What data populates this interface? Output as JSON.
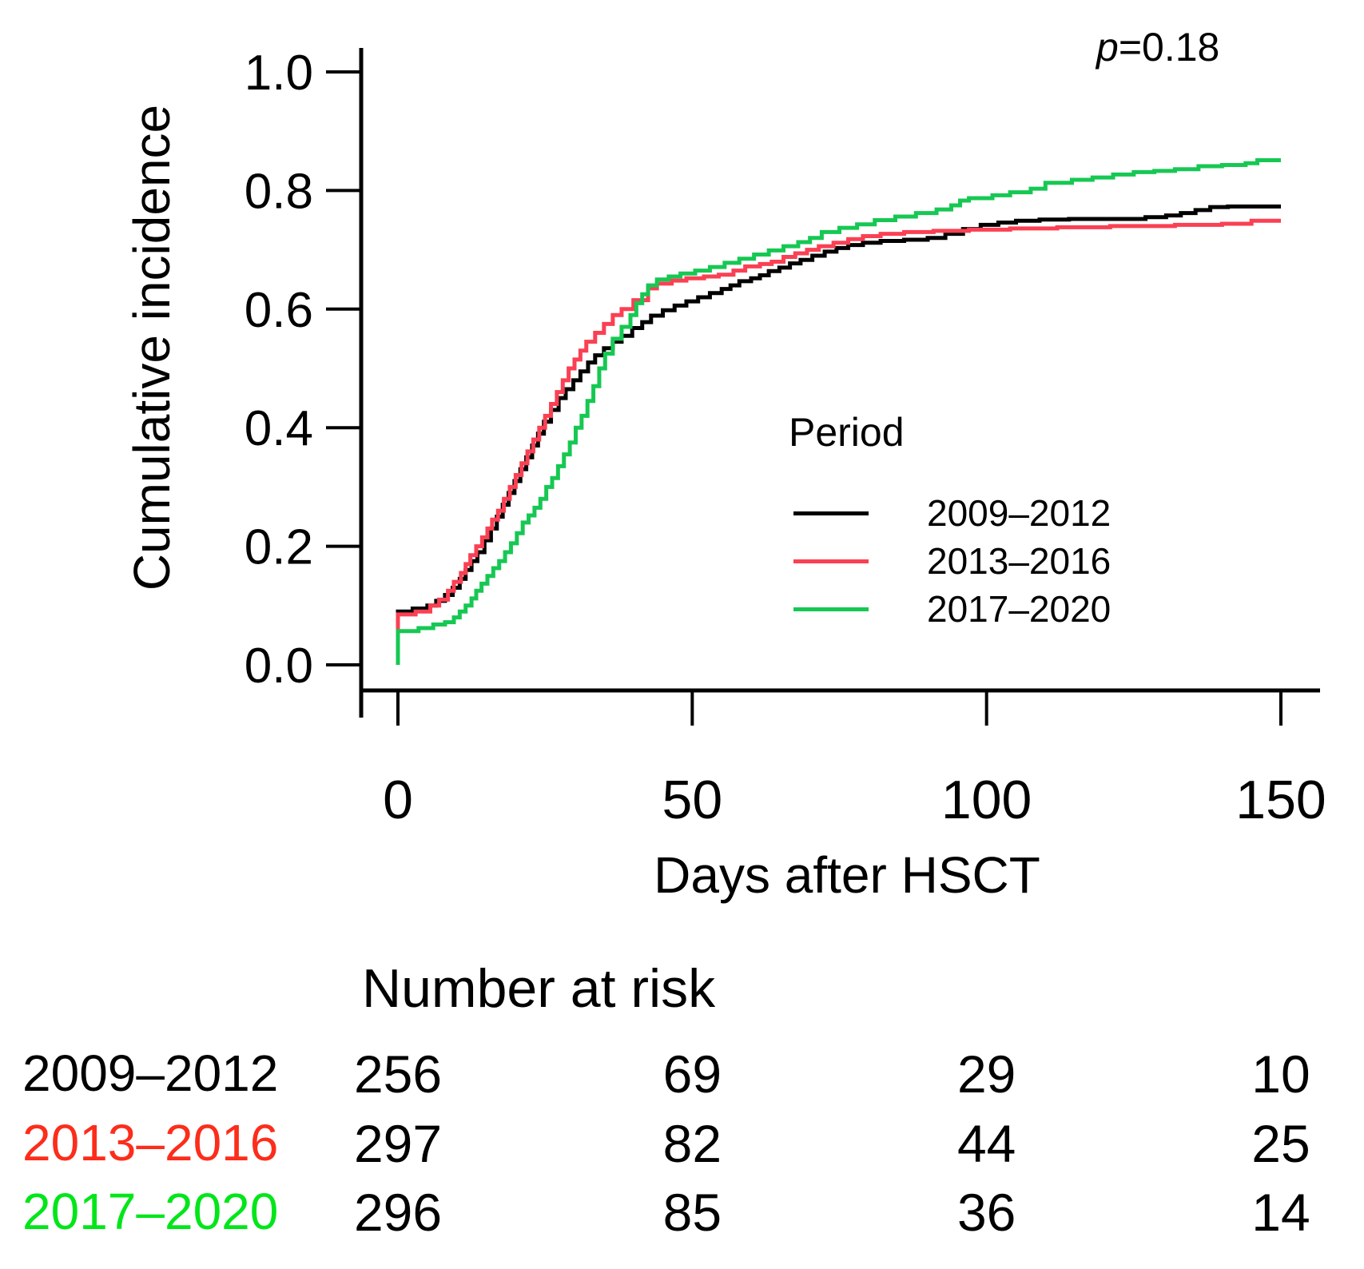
{
  "annotation": {
    "p_italic": "p",
    "p_rest": "=0.18"
  },
  "chart_data": {
    "type": "line",
    "subtype": "step-after-cumulative-incidence",
    "title": "",
    "xlabel": "Days after HSCT",
    "ylabel": "Cumulative incidence",
    "xlim": [
      0,
      150
    ],
    "ylim": [
      0.0,
      1.0
    ],
    "grid": false,
    "xticks": [
      0,
      50,
      100,
      150
    ],
    "xtick_labels": [
      "0",
      "50",
      "100",
      "150"
    ],
    "yticks": [
      0.0,
      0.2,
      0.4,
      0.6,
      0.8,
      1.0
    ],
    "ytick_labels": [
      "0.0",
      "0.2",
      "0.4",
      "0.6",
      "0.8",
      "1.0"
    ],
    "legend": {
      "title": "Period",
      "position": "center-right"
    },
    "p_value_text": "p=0.18",
    "series": [
      {
        "name": "2009–2012",
        "color": "#000000",
        "points": [
          [
            0,
            0
          ],
          [
            0,
            0.09
          ],
          [
            2.5,
            0.095
          ],
          [
            5,
            0.1
          ],
          [
            6.5,
            0.108
          ],
          [
            8,
            0.118
          ],
          [
            9.3,
            0.13
          ],
          [
            10.5,
            0.145
          ],
          [
            11.5,
            0.16
          ],
          [
            12.5,
            0.175
          ],
          [
            13.5,
            0.19
          ],
          [
            14.7,
            0.21
          ],
          [
            15.8,
            0.23
          ],
          [
            16.8,
            0.25
          ],
          [
            17.8,
            0.27
          ],
          [
            18.8,
            0.29
          ],
          [
            19.8,
            0.31
          ],
          [
            20.8,
            0.33
          ],
          [
            21.8,
            0.35
          ],
          [
            22.8,
            0.37
          ],
          [
            23.8,
            0.39
          ],
          [
            24.8,
            0.41
          ],
          [
            26,
            0.43
          ],
          [
            27.3,
            0.45
          ],
          [
            28.5,
            0.465
          ],
          [
            29.8,
            0.48
          ],
          [
            31,
            0.495
          ],
          [
            32.3,
            0.51
          ],
          [
            33.5,
            0.522
          ],
          [
            35,
            0.534
          ],
          [
            36.5,
            0.545
          ],
          [
            38,
            0.555
          ],
          [
            39.8,
            0.568
          ],
          [
            41.5,
            0.578
          ],
          [
            43,
            0.589
          ],
          [
            45,
            0.598
          ],
          [
            47,
            0.606
          ],
          [
            49,
            0.613
          ],
          [
            51,
            0.62
          ],
          [
            53,
            0.627
          ],
          [
            55,
            0.634
          ],
          [
            56.5,
            0.64
          ],
          [
            58,
            0.647
          ],
          [
            60,
            0.652
          ],
          [
            61.5,
            0.657
          ],
          [
            63,
            0.664
          ],
          [
            64.8,
            0.67
          ],
          [
            66.6,
            0.677
          ],
          [
            68.4,
            0.683
          ],
          [
            70.4,
            0.69
          ],
          [
            72.5,
            0.697
          ],
          [
            74.5,
            0.703
          ],
          [
            76.5,
            0.708
          ],
          [
            79,
            0.712
          ],
          [
            82,
            0.715
          ],
          [
            86,
            0.717
          ],
          [
            90,
            0.72
          ],
          [
            93,
            0.727
          ],
          [
            96,
            0.735
          ],
          [
            99,
            0.742
          ],
          [
            102,
            0.746
          ],
          [
            105,
            0.749
          ],
          [
            109,
            0.751
          ],
          [
            114,
            0.752
          ],
          [
            122,
            0.752
          ],
          [
            127,
            0.755
          ],
          [
            130.5,
            0.758
          ],
          [
            133,
            0.762
          ],
          [
            135.5,
            0.767
          ],
          [
            138,
            0.772
          ],
          [
            141,
            0.773
          ],
          [
            150,
            0.773
          ]
        ]
      },
      {
        "name": "2013–2016",
        "color": "#fa4053",
        "points": [
          [
            0,
            0
          ],
          [
            0,
            0.085
          ],
          [
            3,
            0.09
          ],
          [
            5.5,
            0.1
          ],
          [
            7,
            0.11
          ],
          [
            8.5,
            0.125
          ],
          [
            9.5,
            0.14
          ],
          [
            10.7,
            0.155
          ],
          [
            11.5,
            0.17
          ],
          [
            12.3,
            0.185
          ],
          [
            13.3,
            0.2
          ],
          [
            14.3,
            0.215
          ],
          [
            15.2,
            0.23
          ],
          [
            16,
            0.245
          ],
          [
            17,
            0.26
          ],
          [
            18,
            0.28
          ],
          [
            19,
            0.3
          ],
          [
            20,
            0.32
          ],
          [
            21,
            0.34
          ],
          [
            22,
            0.36
          ],
          [
            23,
            0.38
          ],
          [
            24,
            0.4
          ],
          [
            25,
            0.42
          ],
          [
            26,
            0.44
          ],
          [
            27,
            0.46
          ],
          [
            28,
            0.48
          ],
          [
            29,
            0.5
          ],
          [
            30,
            0.515
          ],
          [
            31,
            0.53
          ],
          [
            32,
            0.545
          ],
          [
            33.5,
            0.56
          ],
          [
            35,
            0.575
          ],
          [
            36.5,
            0.59
          ],
          [
            38,
            0.6
          ],
          [
            40,
            0.615
          ],
          [
            42.5,
            0.635
          ],
          [
            44,
            0.643
          ],
          [
            46.5,
            0.648
          ],
          [
            49,
            0.652
          ],
          [
            52,
            0.655
          ],
          [
            54.5,
            0.658
          ],
          [
            57,
            0.665
          ],
          [
            59,
            0.672
          ],
          [
            61.5,
            0.676
          ],
          [
            63.5,
            0.68
          ],
          [
            65.5,
            0.688
          ],
          [
            67.5,
            0.694
          ],
          [
            69.5,
            0.7
          ],
          [
            71.5,
            0.706
          ],
          [
            74,
            0.712
          ],
          [
            76.5,
            0.718
          ],
          [
            79,
            0.723
          ],
          [
            82,
            0.727
          ],
          [
            86,
            0.73
          ],
          [
            91,
            0.732
          ],
          [
            97,
            0.734
          ],
          [
            104,
            0.736
          ],
          [
            112,
            0.738
          ],
          [
            121,
            0.74
          ],
          [
            132,
            0.742
          ],
          [
            140,
            0.744
          ],
          [
            145,
            0.749
          ],
          [
            150,
            0.749
          ]
        ]
      },
      {
        "name": "2017–2020",
        "color": "#16c853",
        "points": [
          [
            0,
            0
          ],
          [
            0,
            0.057
          ],
          [
            3.5,
            0.062
          ],
          [
            6,
            0.068
          ],
          [
            8,
            0.072
          ],
          [
            9.5,
            0.08
          ],
          [
            10.5,
            0.09
          ],
          [
            11.5,
            0.1
          ],
          [
            12.5,
            0.112
          ],
          [
            13.3,
            0.125
          ],
          [
            14.2,
            0.137
          ],
          [
            15.2,
            0.15
          ],
          [
            16.2,
            0.163
          ],
          [
            17.2,
            0.175
          ],
          [
            18.2,
            0.19
          ],
          [
            19.2,
            0.205
          ],
          [
            20.2,
            0.222
          ],
          [
            21.2,
            0.24
          ],
          [
            22.2,
            0.252
          ],
          [
            23.2,
            0.265
          ],
          [
            24.2,
            0.28
          ],
          [
            25.2,
            0.3
          ],
          [
            26.2,
            0.315
          ],
          [
            27.2,
            0.335
          ],
          [
            28.2,
            0.355
          ],
          [
            29.2,
            0.375
          ],
          [
            30.2,
            0.4
          ],
          [
            31.2,
            0.42
          ],
          [
            32.2,
            0.445
          ],
          [
            33.2,
            0.47
          ],
          [
            34.2,
            0.5
          ],
          [
            35.2,
            0.525
          ],
          [
            36.5,
            0.55
          ],
          [
            38,
            0.57
          ],
          [
            39.5,
            0.59
          ],
          [
            40.5,
            0.61
          ],
          [
            41.5,
            0.625
          ],
          [
            42.5,
            0.64
          ],
          [
            44,
            0.65
          ],
          [
            46,
            0.655
          ],
          [
            48,
            0.66
          ],
          [
            50.5,
            0.665
          ],
          [
            53,
            0.671
          ],
          [
            55.5,
            0.678
          ],
          [
            58,
            0.685
          ],
          [
            60.5,
            0.692
          ],
          [
            63,
            0.699
          ],
          [
            65.5,
            0.706
          ],
          [
            68,
            0.713
          ],
          [
            70,
            0.72
          ],
          [
            72,
            0.73
          ],
          [
            75,
            0.737
          ],
          [
            78,
            0.743
          ],
          [
            81,
            0.75
          ],
          [
            84.5,
            0.756
          ],
          [
            88,
            0.762
          ],
          [
            91.5,
            0.768
          ],
          [
            94,
            0.775
          ],
          [
            95.5,
            0.783
          ],
          [
            97,
            0.787
          ],
          [
            101,
            0.792
          ],
          [
            104,
            0.797
          ],
          [
            107.5,
            0.803
          ],
          [
            110,
            0.813
          ],
          [
            114.5,
            0.818
          ],
          [
            118,
            0.822
          ],
          [
            121.5,
            0.827
          ],
          [
            125,
            0.831
          ],
          [
            128.5,
            0.833
          ],
          [
            132,
            0.836
          ],
          [
            136,
            0.841
          ],
          [
            140,
            0.843
          ],
          [
            144,
            0.846
          ],
          [
            146,
            0.851
          ],
          [
            150,
            0.851
          ]
        ]
      }
    ]
  },
  "risk_table": {
    "heading": "Number at risk",
    "columns": [
      0,
      50,
      100,
      150
    ],
    "rows": [
      {
        "label": "2009–2012",
        "color": "#000000",
        "values": [
          "256",
          "69",
          "29",
          "10"
        ]
      },
      {
        "label": "2013–2016",
        "color": "#fc2d1b",
        "values": [
          "297",
          "82",
          "44",
          "25"
        ]
      },
      {
        "label": "2017–2020",
        "color": "#00e619",
        "values": [
          "296",
          "85",
          "36",
          "14"
        ]
      }
    ]
  }
}
